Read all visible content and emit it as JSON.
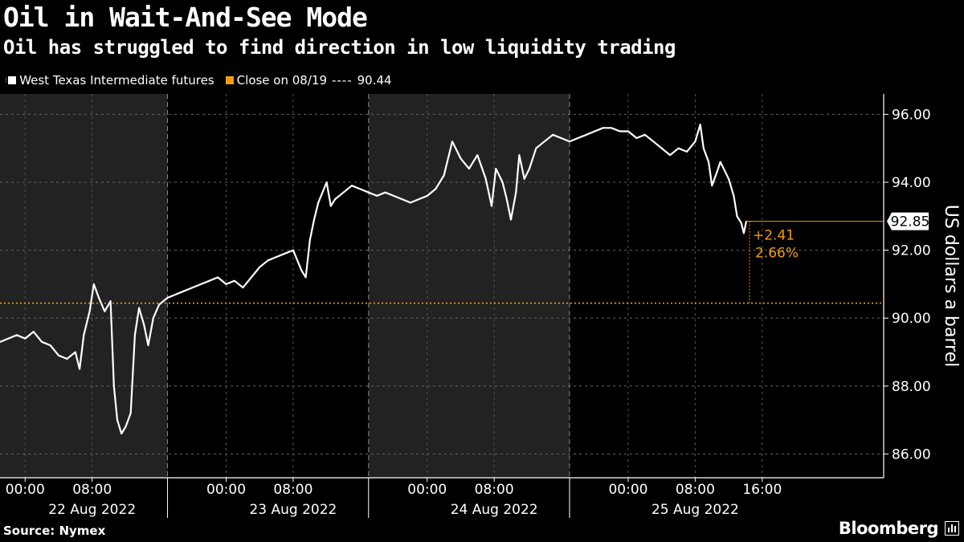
{
  "title": "Oil in Wait-And-See Mode",
  "subtitle": "Oil has struggled to find direction in low liquidity trading",
  "legend": {
    "series_label": "West Texas Intermediate futures",
    "series_color": "#ffffff",
    "close_label": "Close on 08/19",
    "close_dash": "----",
    "close_value": "90.44",
    "close_color": "#f39c12"
  },
  "source": "Source: Nymex",
  "brand": "Bloomberg",
  "annotation": {
    "last_value": "92.85",
    "change": "+2.41",
    "change_pct": "2.66%"
  },
  "chart_data": {
    "type": "line",
    "title": "Oil in Wait-And-See Mode",
    "subtitle": "Oil has struggled to find direction in low liquidity trading",
    "ylabel": "US dollars a barrel",
    "ylim": [
      85.3,
      96.6
    ],
    "yticks": [
      "96.00",
      "94.00",
      "92.00",
      "90.00",
      "88.00",
      "86.00"
    ],
    "xlim_hours": [
      -3,
      102.5
    ],
    "x_ticks": [
      {
        "h": 0,
        "label": "00:00"
      },
      {
        "h": 8,
        "label": "08:00"
      },
      {
        "h": 24,
        "label": "00:00"
      },
      {
        "h": 32,
        "label": "08:00"
      },
      {
        "h": 48,
        "label": "00:00"
      },
      {
        "h": 56,
        "label": "08:00"
      },
      {
        "h": 72,
        "label": "00:00"
      },
      {
        "h": 80,
        "label": "08:00"
      },
      {
        "h": 88,
        "label": "16:00"
      }
    ],
    "day_labels": [
      {
        "h": 8,
        "label": "22 Aug 2022"
      },
      {
        "h": 32,
        "label": "23 Aug 2022"
      },
      {
        "h": 56,
        "label": "24 Aug 2022"
      },
      {
        "h": 80,
        "label": "25 Aug 2022"
      }
    ],
    "shaded_periods_hours": [
      [
        -3,
        17
      ],
      [
        41,
        65
      ]
    ],
    "session_breaks_hours": [
      17,
      41,
      65
    ],
    "reference_line": {
      "label": "Close on 08/19",
      "value": 90.44
    },
    "series": [
      {
        "name": "West Texas Intermediate futures",
        "points": [
          [
            -3,
            89.3
          ],
          [
            -2,
            89.4
          ],
          [
            -1,
            89.5
          ],
          [
            0,
            89.4
          ],
          [
            1,
            89.6
          ],
          [
            2,
            89.3
          ],
          [
            3,
            89.2
          ],
          [
            4,
            88.9
          ],
          [
            5,
            88.8
          ],
          [
            6,
            89.0
          ],
          [
            6.5,
            88.5
          ],
          [
            7,
            89.5
          ],
          [
            7.7,
            90.2
          ],
          [
            8.2,
            91.0
          ],
          [
            8.8,
            90.6
          ],
          [
            9.5,
            90.2
          ],
          [
            10.2,
            90.5
          ],
          [
            10.6,
            88.0
          ],
          [
            11.0,
            87.0
          ],
          [
            11.5,
            86.6
          ],
          [
            12.0,
            86.8
          ],
          [
            12.6,
            87.2
          ],
          [
            13.1,
            89.5
          ],
          [
            13.6,
            90.3
          ],
          [
            14.2,
            89.8
          ],
          [
            14.7,
            89.2
          ],
          [
            15.3,
            90.0
          ],
          [
            16.0,
            90.4
          ],
          [
            17,
            90.6
          ],
          [
            18,
            90.7
          ],
          [
            19,
            90.8
          ],
          [
            20,
            90.9
          ],
          [
            21,
            91.0
          ],
          [
            22,
            91.1
          ],
          [
            23,
            91.2
          ],
          [
            24,
            91.0
          ],
          [
            25,
            91.1
          ],
          [
            26,
            90.9
          ],
          [
            27,
            91.2
          ],
          [
            28,
            91.5
          ],
          [
            29,
            91.7
          ],
          [
            30,
            91.8
          ],
          [
            31,
            91.9
          ],
          [
            32,
            92.0
          ],
          [
            33,
            91.4
          ],
          [
            33.5,
            91.2
          ],
          [
            34,
            92.3
          ],
          [
            34.5,
            92.9
          ],
          [
            35,
            93.4
          ],
          [
            36,
            94.0
          ],
          [
            36.5,
            93.3
          ],
          [
            37,
            93.5
          ],
          [
            38,
            93.7
          ],
          [
            39,
            93.9
          ],
          [
            40,
            93.8
          ],
          [
            41,
            93.7
          ],
          [
            42,
            93.6
          ],
          [
            43,
            93.7
          ],
          [
            44,
            93.6
          ],
          [
            45,
            93.5
          ],
          [
            46,
            93.4
          ],
          [
            47,
            93.5
          ],
          [
            48,
            93.6
          ],
          [
            49,
            93.8
          ],
          [
            50,
            94.2
          ],
          [
            51,
            95.2
          ],
          [
            52,
            94.7
          ],
          [
            53,
            94.4
          ],
          [
            54,
            94.8
          ],
          [
            55,
            94.1
          ],
          [
            55.7,
            93.3
          ],
          [
            56.2,
            94.4
          ],
          [
            57,
            94.0
          ],
          [
            57.5,
            93.5
          ],
          [
            58,
            92.9
          ],
          [
            58.6,
            93.7
          ],
          [
            59,
            94.8
          ],
          [
            59.6,
            94.1
          ],
          [
            60.2,
            94.4
          ],
          [
            61,
            95.0
          ],
          [
            62,
            95.2
          ],
          [
            63,
            95.4
          ],
          [
            64,
            95.3
          ],
          [
            65,
            95.2
          ],
          [
            66,
            95.3
          ],
          [
            67,
            95.4
          ],
          [
            68,
            95.5
          ],
          [
            69,
            95.6
          ],
          [
            70,
            95.6
          ],
          [
            71,
            95.5
          ],
          [
            72,
            95.5
          ],
          [
            73,
            95.3
          ],
          [
            74,
            95.4
          ],
          [
            75,
            95.2
          ],
          [
            76,
            95.0
          ],
          [
            77,
            94.8
          ],
          [
            78,
            95.0
          ],
          [
            79,
            94.9
          ],
          [
            80,
            95.2
          ],
          [
            80.6,
            95.7
          ],
          [
            81,
            95.0
          ],
          [
            81.6,
            94.6
          ],
          [
            82,
            93.9
          ],
          [
            82.6,
            94.3
          ],
          [
            83,
            94.6
          ],
          [
            83.6,
            94.3
          ],
          [
            84,
            94.1
          ],
          [
            84.6,
            93.6
          ],
          [
            85,
            93.0
          ],
          [
            85.5,
            92.8
          ],
          [
            85.8,
            92.5
          ],
          [
            86.1,
            92.85
          ]
        ]
      }
    ]
  }
}
